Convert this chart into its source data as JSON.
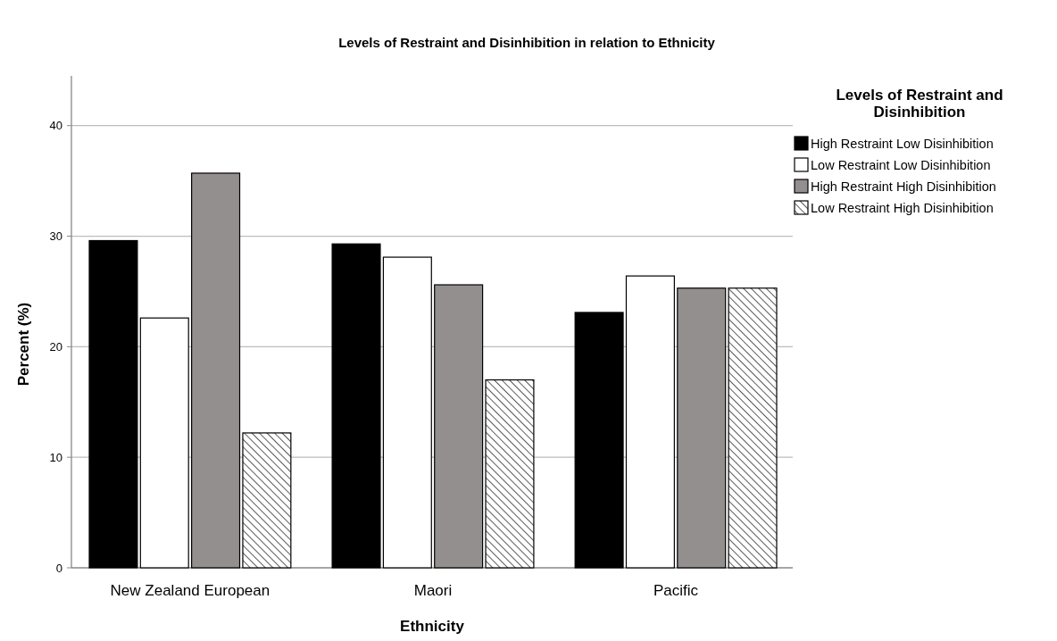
{
  "chart_data": {
    "type": "bar",
    "title": "Levels of Restraint and Disinhibition in relation to Ethnicity",
    "xlabel": "Ethnicity",
    "ylabel": "Percent (%)",
    "legend_title": "Levels of Restraint and Disinhibition",
    "categories": [
      "New Zealand European",
      "Maori",
      "Pacific"
    ],
    "series": [
      {
        "name": "High Restraint Low Disinhibition",
        "color": "#000000",
        "values": [
          29.6,
          29.3,
          23.1
        ]
      },
      {
        "name": "Low Restraint Low Disinhibition",
        "color": "#ffffff",
        "values": [
          22.6,
          28.1,
          26.4
        ]
      },
      {
        "name": "High Restraint High Disinhibition",
        "color": "#938f8e",
        "values": [
          35.7,
          25.6,
          25.3
        ]
      },
      {
        "name": "Low Restraint High Disinhibition",
        "color": "#000000",
        "values": [
          12.2,
          17.0,
          25.3
        ]
      }
    ],
    "ylim": [
      0,
      44.5
    ],
    "yticks": [
      0,
      10,
      20,
      30,
      40
    ],
    "grid": "y",
    "legend": "right"
  }
}
